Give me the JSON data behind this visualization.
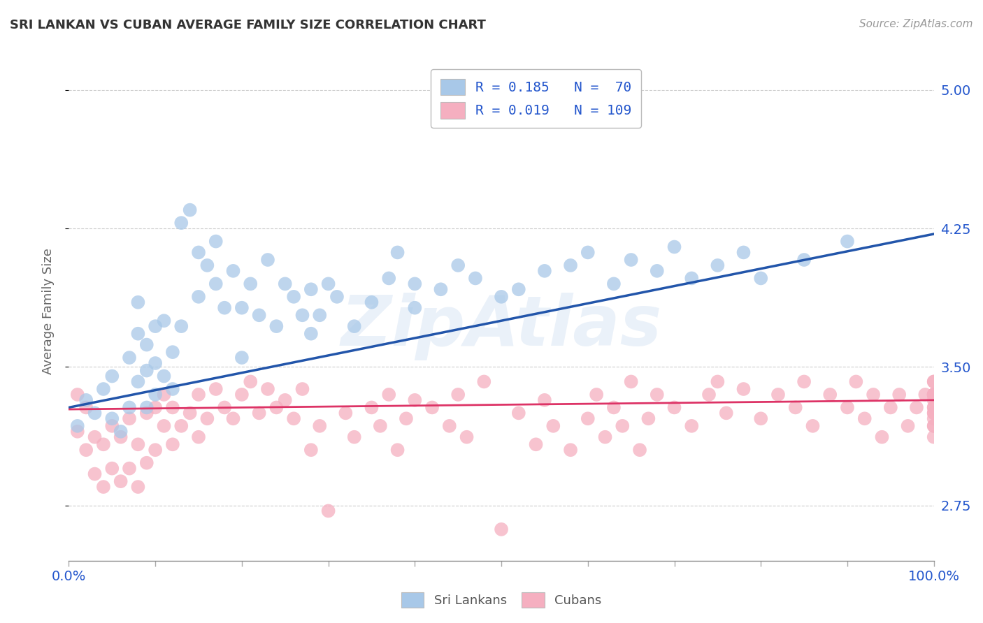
{
  "title": "SRI LANKAN VS CUBAN AVERAGE FAMILY SIZE CORRELATION CHART",
  "source": "Source: ZipAtlas.com",
  "ylabel": "Average Family Size",
  "ymin": 2.45,
  "ymax": 5.15,
  "xmin": 0.0,
  "xmax": 100.0,
  "yticks": [
    2.75,
    3.5,
    4.25,
    5.0
  ],
  "xticks": [
    0,
    10,
    20,
    30,
    40,
    50,
    60,
    70,
    80,
    90,
    100
  ],
  "sri_lankan_color": "#a8c8e8",
  "cuban_color": "#f5afc0",
  "sri_lankan_line_color": "#2255aa",
  "cuban_line_color": "#dd3366",
  "legend_text_color": "#2255cc",
  "background_color": "#ffffff",
  "grid_color": "#cccccc",
  "sri_line_y0": 3.28,
  "sri_line_y1": 4.22,
  "cuban_line_y0": 3.27,
  "cuban_line_y1": 3.32,
  "sri_lankans_x": [
    1,
    2,
    3,
    4,
    5,
    5,
    6,
    7,
    7,
    8,
    8,
    8,
    9,
    9,
    9,
    10,
    10,
    10,
    11,
    11,
    12,
    12,
    13,
    13,
    14,
    15,
    15,
    16,
    17,
    17,
    18,
    19,
    20,
    20,
    21,
    22,
    23,
    24,
    25,
    26,
    27,
    28,
    28,
    29,
    30,
    31,
    33,
    35,
    37,
    38,
    40,
    40,
    43,
    45,
    47,
    50,
    52,
    55,
    58,
    60,
    63,
    65,
    68,
    70,
    72,
    75,
    78,
    80,
    85,
    90
  ],
  "sri_lankans_y": [
    3.18,
    3.32,
    3.25,
    3.38,
    3.22,
    3.45,
    3.15,
    3.28,
    3.55,
    3.42,
    3.68,
    3.85,
    3.28,
    3.48,
    3.62,
    3.35,
    3.52,
    3.72,
    3.45,
    3.75,
    3.38,
    3.58,
    3.72,
    4.28,
    4.35,
    4.12,
    3.88,
    4.05,
    3.95,
    4.18,
    3.82,
    4.02,
    3.55,
    3.82,
    3.95,
    3.78,
    4.08,
    3.72,
    3.95,
    3.88,
    3.78,
    3.68,
    3.92,
    3.78,
    3.95,
    3.88,
    3.72,
    3.85,
    3.98,
    4.12,
    3.82,
    3.95,
    3.92,
    4.05,
    3.98,
    3.88,
    3.92,
    4.02,
    4.05,
    4.12,
    3.95,
    4.08,
    4.02,
    4.15,
    3.98,
    4.05,
    4.12,
    3.98,
    4.08,
    4.18
  ],
  "cubans_x": [
    1,
    1,
    2,
    2,
    3,
    3,
    4,
    4,
    5,
    5,
    6,
    6,
    7,
    7,
    8,
    8,
    9,
    9,
    10,
    10,
    11,
    11,
    12,
    12,
    13,
    14,
    15,
    15,
    16,
    17,
    18,
    19,
    20,
    21,
    22,
    23,
    24,
    25,
    26,
    27,
    28,
    29,
    30,
    32,
    33,
    35,
    36,
    37,
    38,
    39,
    40,
    42,
    44,
    45,
    46,
    48,
    50,
    52,
    54,
    55,
    56,
    58,
    60,
    61,
    62,
    63,
    64,
    65,
    66,
    67,
    68,
    70,
    72,
    74,
    75,
    76,
    78,
    80,
    82,
    84,
    85,
    86,
    88,
    90,
    91,
    92,
    93,
    94,
    95,
    96,
    97,
    98,
    99,
    100,
    100,
    100,
    100,
    100,
    100,
    100,
    100,
    100,
    100,
    100,
    100,
    100,
    100,
    100,
    100
  ],
  "cubans_y": [
    3.15,
    3.35,
    3.05,
    3.28,
    2.92,
    3.12,
    2.85,
    3.08,
    2.95,
    3.18,
    2.88,
    3.12,
    2.95,
    3.22,
    2.85,
    3.08,
    2.98,
    3.25,
    3.05,
    3.28,
    3.18,
    3.35,
    3.08,
    3.28,
    3.18,
    3.25,
    3.12,
    3.35,
    3.22,
    3.38,
    3.28,
    3.22,
    3.35,
    3.42,
    3.25,
    3.38,
    3.28,
    3.32,
    3.22,
    3.38,
    3.05,
    3.18,
    2.72,
    3.25,
    3.12,
    3.28,
    3.18,
    3.35,
    3.05,
    3.22,
    3.32,
    3.28,
    3.18,
    3.35,
    3.12,
    3.42,
    2.62,
    3.25,
    3.08,
    3.32,
    3.18,
    3.05,
    3.22,
    3.35,
    3.12,
    3.28,
    3.18,
    3.42,
    3.05,
    3.22,
    3.35,
    3.28,
    3.18,
    3.35,
    3.42,
    3.25,
    3.38,
    3.22,
    3.35,
    3.28,
    3.42,
    3.18,
    3.35,
    3.28,
    3.42,
    3.22,
    3.35,
    3.12,
    3.28,
    3.35,
    3.18,
    3.28,
    3.35,
    3.42,
    3.25,
    3.35,
    3.18,
    3.32,
    3.22,
    3.35,
    3.12,
    3.28,
    3.35,
    3.18,
    3.28,
    3.35,
    3.42,
    3.25,
    3.35
  ]
}
